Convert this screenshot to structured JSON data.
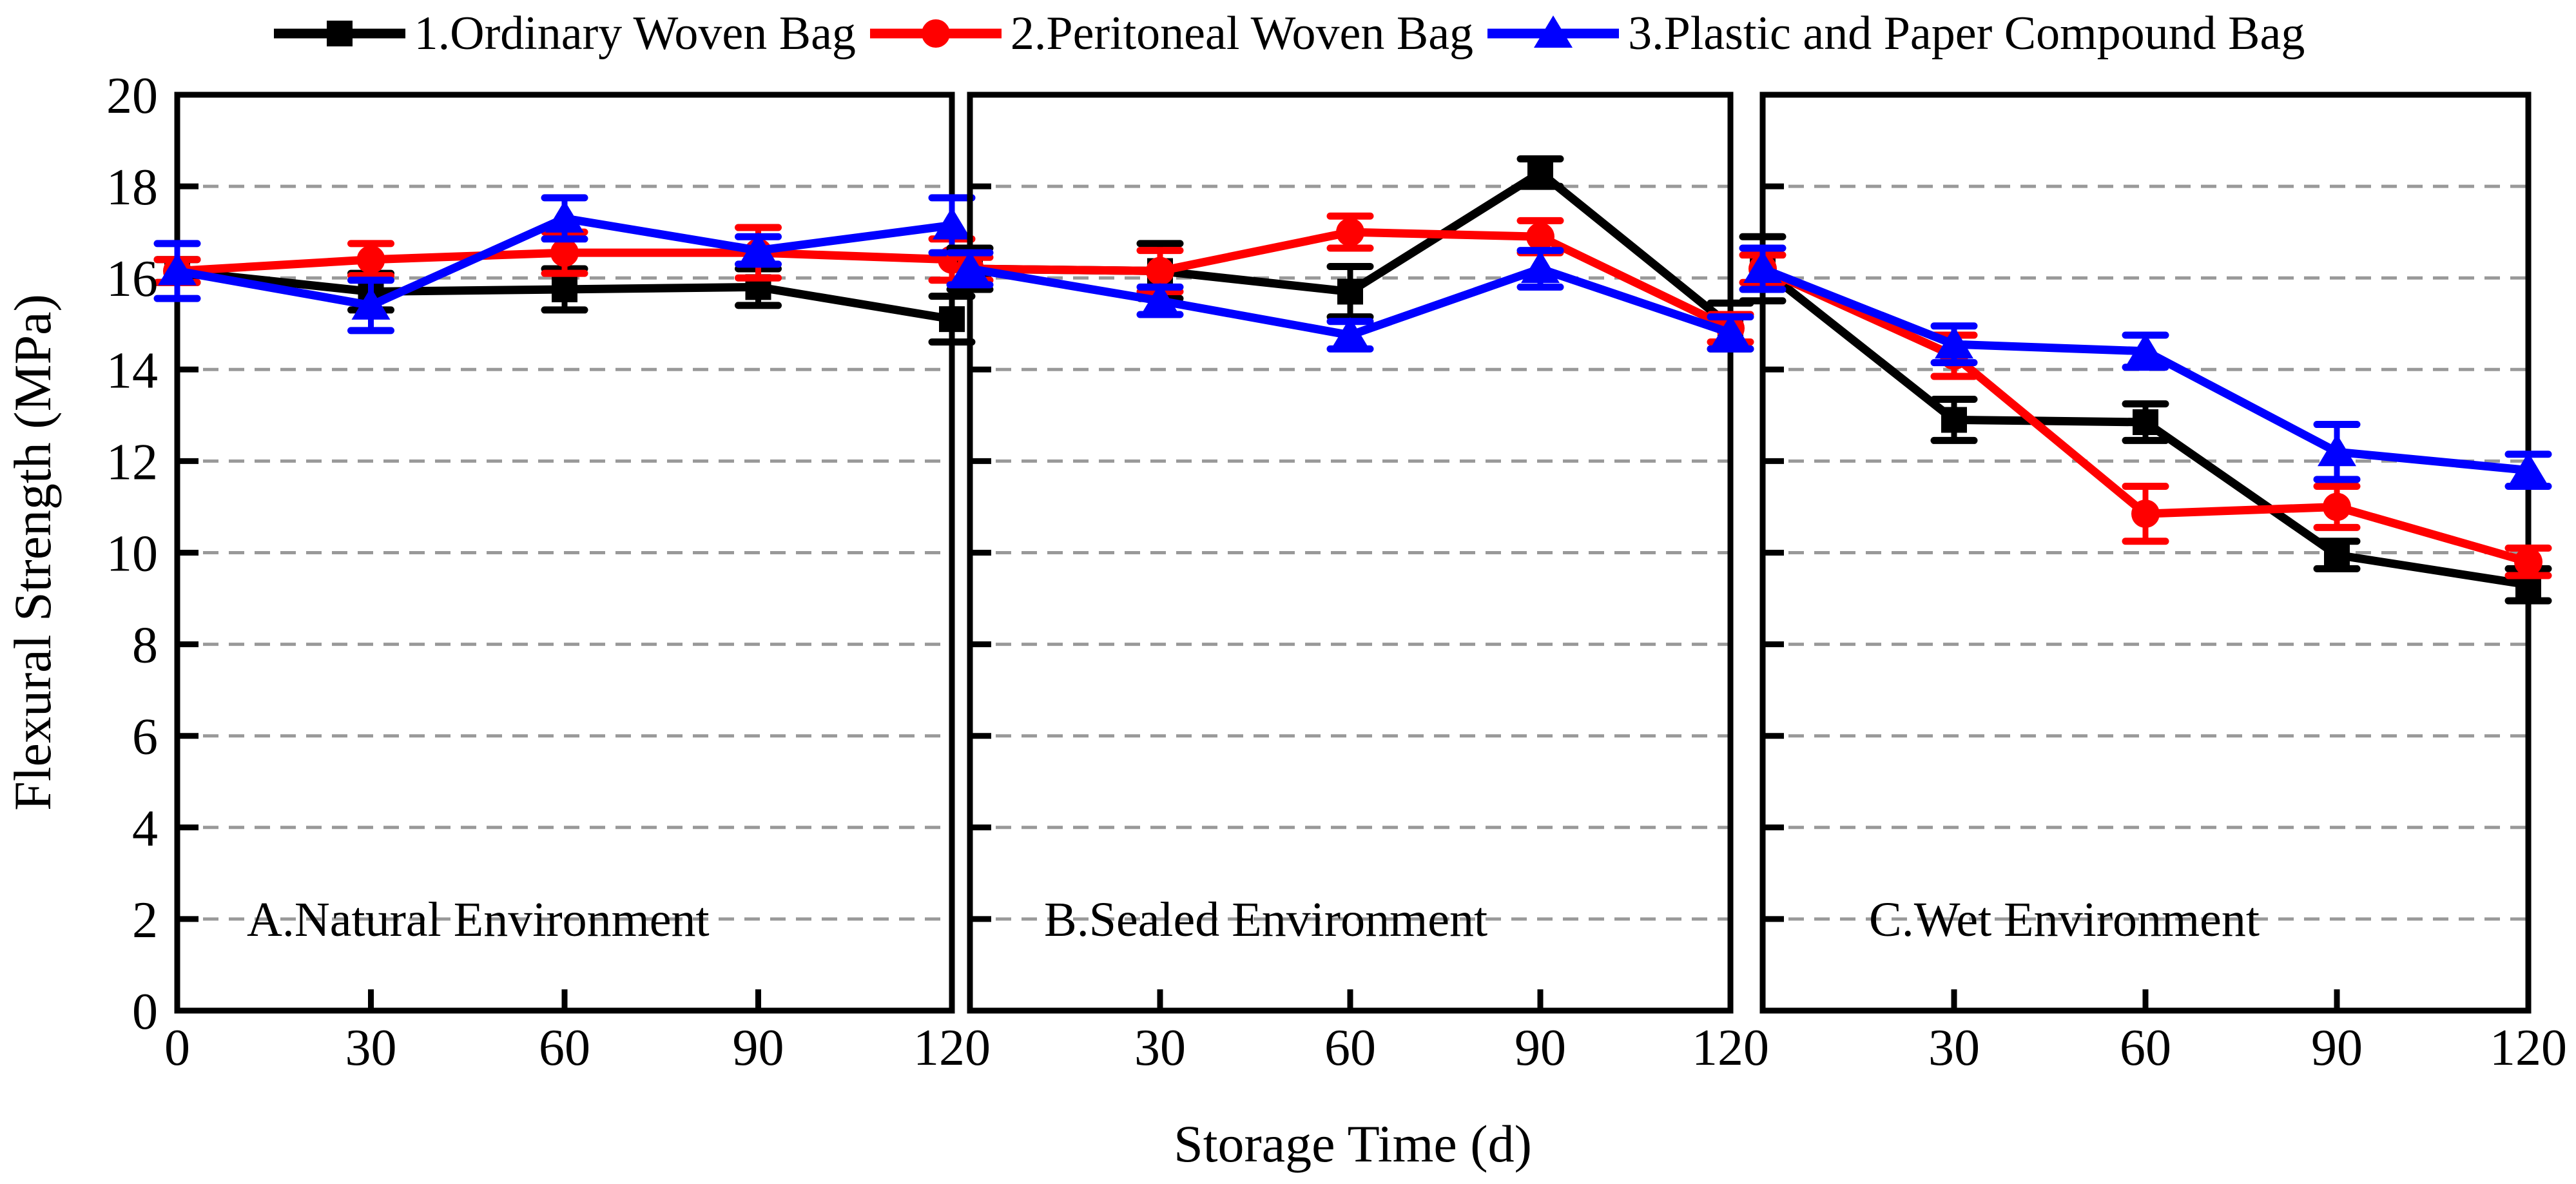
{
  "figure": {
    "xlabel": "Storage Time (d)",
    "ylabel": "Flexural Strength (MPa)"
  },
  "legend": {
    "items": [
      {
        "label": "1.Ordinary Woven Bag",
        "color": "#000000",
        "marker": "square"
      },
      {
        "label": "2.Peritoneal Woven Bag",
        "color": "#FF0000",
        "marker": "circle"
      },
      {
        "label": "3.Plastic and Paper Compound Bag",
        "color": "#0000FF",
        "marker": "triangle"
      }
    ]
  },
  "chart_data": {
    "type": "line",
    "title": "",
    "xlabel": "Storage Time (d)",
    "ylabel": "Flexural Strength (MPa)",
    "ylim": [
      0,
      20
    ],
    "ytick_step": 2,
    "x": [
      0,
      30,
      60,
      90,
      120
    ],
    "xtick_labels": [
      [
        0,
        30,
        60,
        90,
        120
      ],
      [
        30,
        60,
        90,
        120
      ],
      [
        30,
        60,
        90,
        120
      ]
    ],
    "grid": {
      "horizontal": true,
      "style": "dashed",
      "color": "#999999"
    },
    "legend_position": "top-center",
    "error_bars": true,
    "panels": [
      {
        "label": "A.Natural Environment",
        "series": [
          {
            "name": "1.Ordinary Woven Bag",
            "color": "#000000",
            "marker": "square",
            "values": [
              16.15,
              15.7,
              15.75,
              15.8,
              15.1
            ],
            "errors": [
              0.25,
              0.4,
              0.45,
              0.4,
              0.5
            ]
          },
          {
            "name": "2.Peritoneal Woven Bag",
            "color": "#FF0000",
            "marker": "circle",
            "values": [
              16.15,
              16.4,
              16.55,
              16.55,
              16.4
            ],
            "errors": [
              0.25,
              0.35,
              0.45,
              0.55,
              0.45
            ]
          },
          {
            "name": "3.Plastic and Paper Compound Bag",
            "color": "#0000FF",
            "marker": "triangle",
            "values": [
              16.15,
              15.4,
              17.3,
              16.6,
              17.15
            ],
            "errors": [
              0.6,
              0.55,
              0.45,
              0.3,
              0.6
            ]
          }
        ]
      },
      {
        "label": "B.Sealed Environment",
        "series": [
          {
            "name": "1.Ordinary Woven Bag",
            "color": "#000000",
            "marker": "square",
            "values": [
              16.2,
              16.15,
              15.7,
              18.3,
              14.95
            ],
            "errors": [
              0.45,
              0.6,
              0.55,
              0.3,
              0.5
            ]
          },
          {
            "name": "2.Peritoneal Woven Bag",
            "color": "#FF0000",
            "marker": "circle",
            "values": [
              16.2,
              16.15,
              17.0,
              16.9,
              14.9
            ],
            "errors": [
              0.25,
              0.45,
              0.35,
              0.35,
              0.3
            ]
          },
          {
            "name": "3.Plastic and Paper Compound Bag",
            "color": "#0000FF",
            "marker": "triangle",
            "values": [
              16.2,
              15.5,
              14.75,
              16.2,
              14.8
            ],
            "errors": [
              0.35,
              0.3,
              0.3,
              0.4,
              0.35
            ]
          }
        ]
      },
      {
        "label": "C.Wet Environment",
        "series": [
          {
            "name": "1.Ordinary Woven Bag",
            "color": "#000000",
            "marker": "square",
            "values": [
              16.2,
              12.9,
              12.85,
              9.95,
              9.3
            ],
            "errors": [
              0.7,
              0.45,
              0.4,
              0.3,
              0.35
            ]
          },
          {
            "name": "2.Peritoneal Woven Bag",
            "color": "#FF0000",
            "marker": "circle",
            "values": [
              16.2,
              14.3,
              10.85,
              11.0,
              9.8
            ],
            "errors": [
              0.3,
              0.45,
              0.6,
              0.45,
              0.3
            ]
          },
          {
            "name": "3.Plastic and Paper Compound Bag",
            "color": "#0000FF",
            "marker": "triangle",
            "values": [
              16.2,
              14.55,
              14.4,
              12.2,
              11.8
            ],
            "errors": [
              0.45,
              0.4,
              0.35,
              0.6,
              0.35
            ]
          }
        ]
      }
    ]
  }
}
